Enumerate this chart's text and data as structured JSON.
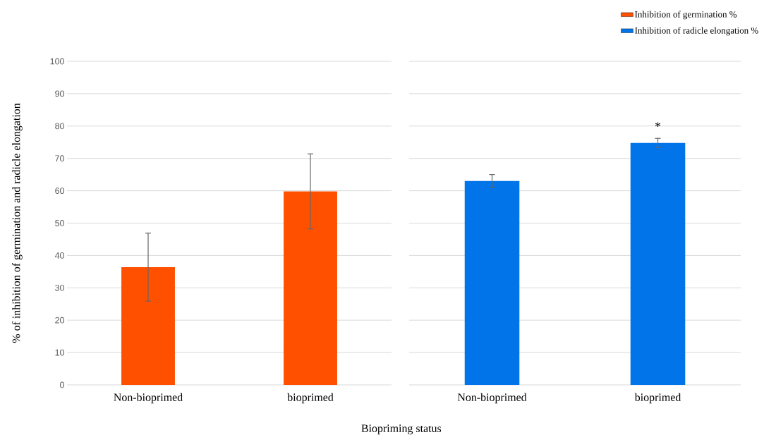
{
  "chart_data": [
    {
      "type": "bar",
      "ylabel": "% of inhibition of germination and radicle elongation",
      "xlabel": "Biopriming status",
      "categories": [
        "Non-bioprimed",
        "bioprimed"
      ],
      "series": [
        {
          "name": "Inhibition of germination %",
          "color": "#ff5000",
          "values": [
            36.4,
            59.8
          ],
          "errors": [
            10.5,
            11.6
          ]
        }
      ],
      "ylim": [
        0,
        100
      ],
      "yticks": [
        0,
        10,
        20,
        30,
        40,
        50,
        60,
        70,
        80,
        90,
        100
      ],
      "grid": "y",
      "legend": "top right"
    },
    {
      "type": "bar",
      "categories": [
        "Non-bioprimed",
        "bioprimed"
      ],
      "series": [
        {
          "name": "Inhibition of radicle elongation %",
          "color": "#0074e8",
          "values": [
            63.0,
            74.8
          ],
          "errors": [
            2.0,
            1.4
          ]
        }
      ],
      "ylim": [
        0,
        100
      ],
      "yticks": [
        0,
        10,
        20,
        30,
        40,
        50,
        60,
        70,
        80,
        90,
        100
      ],
      "grid": "y",
      "legend": "top right",
      "tick_labels": "x",
      "annotations": [
        {
          "text": "*",
          "x": "bioprimed",
          "y": 74.8
        }
      ]
    }
  ]
}
